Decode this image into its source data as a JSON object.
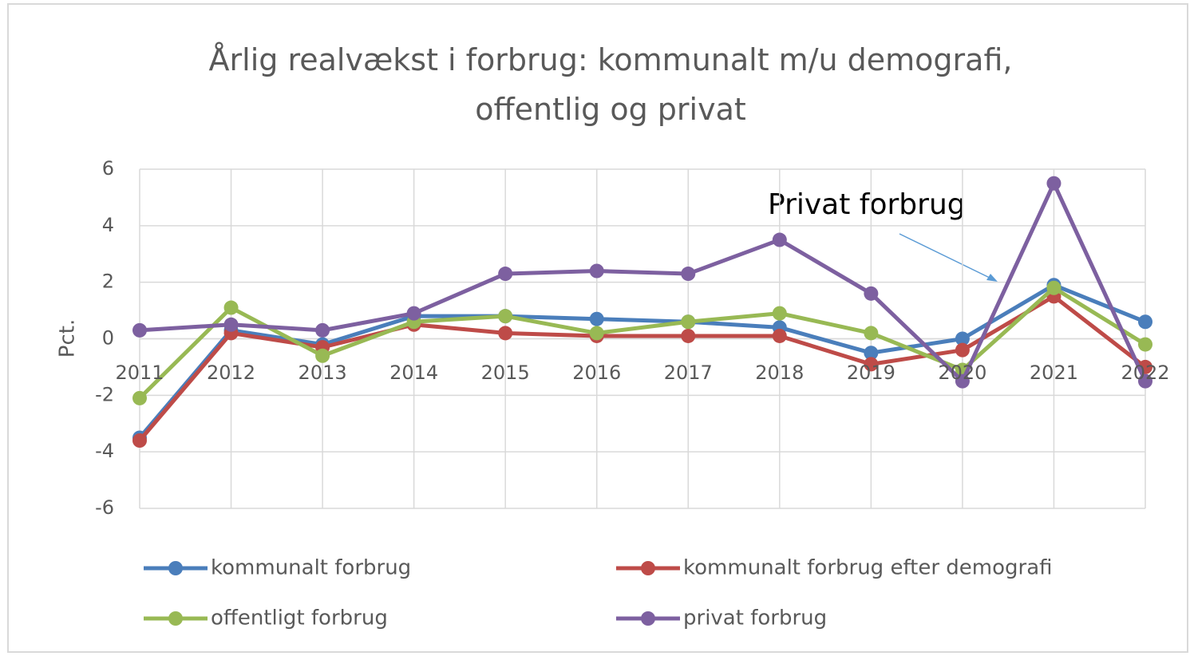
{
  "chart_data": {
    "type": "line",
    "title": "Årlig realvækst i forbrug: kommunalt m/u demografi, offentlig og privat",
    "y_label": "Pct.",
    "annotation": "Privat forbrug",
    "categories": [
      "2011",
      "2012",
      "2013",
      "2014",
      "2015",
      "2016",
      "2017",
      "2018",
      "2019",
      "2020",
      "2021",
      "2022"
    ],
    "series": [
      {
        "name": "kommunalt forbrug",
        "color": "#4a7ebb",
        "values": [
          -3.5,
          0.3,
          -0.2,
          0.8,
          0.8,
          0.7,
          0.6,
          0.4,
          -0.5,
          0.0,
          1.9,
          0.6
        ]
      },
      {
        "name": "kommunalt forbrug efter demografi",
        "color": "#be4b48",
        "values": [
          -3.6,
          0.2,
          -0.3,
          0.5,
          0.2,
          0.1,
          0.1,
          0.1,
          -0.9,
          -0.4,
          1.5,
          -1.0
        ]
      },
      {
        "name": "offentligt forbrug",
        "color": "#98b954",
        "values": [
          -2.1,
          1.1,
          -0.6,
          0.6,
          0.8,
          0.2,
          0.6,
          0.9,
          0.2,
          -1.1,
          1.8,
          -0.2
        ]
      },
      {
        "name": "privat forbrug",
        "color": "#7d60a0",
        "values": [
          0.3,
          0.5,
          0.3,
          0.9,
          2.3,
          2.4,
          2.3,
          3.5,
          1.6,
          -1.5,
          5.5,
          -1.5
        ]
      }
    ],
    "ylim": [
      -6,
      6
    ],
    "yticks": [
      -6,
      -4,
      -2,
      0,
      2,
      4,
      6
    ],
    "grid": true,
    "legend": "bottom"
  }
}
